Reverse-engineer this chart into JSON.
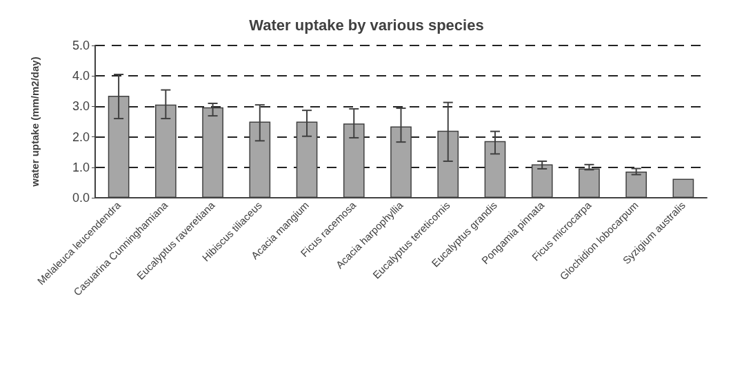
{
  "chart_data": {
    "type": "bar",
    "title": "Water uptake by various species",
    "ylabel": "water uptake (mm/m2/day)",
    "categories": [
      "Melaleuca leucendendra",
      "Casuarina Cunninghamiana",
      "Eucalyptus raveretiana",
      "Hibiscus tiliaceus",
      "Acacia mangium",
      "Ficus racemosa",
      "Acacia harpophyllia",
      "Eucalyptus tereticornis",
      "Eucalyptus grandis",
      "Pongamia pinnata",
      "Ficus microcarpa",
      "Glochidion lobocarpum",
      "Syzigium australis"
    ],
    "values": [
      3.35,
      3.06,
      2.97,
      2.5,
      2.5,
      2.44,
      2.34,
      2.2,
      1.86,
      1.1,
      0.96,
      0.86,
      0.62
    ],
    "errors": [
      [
        2.6,
        4.05
      ],
      [
        2.6,
        3.54
      ],
      [
        2.69,
        3.1
      ],
      [
        1.87,
        3.05
      ],
      [
        2.02,
        2.87
      ],
      [
        1.97,
        2.92
      ],
      [
        1.83,
        2.94
      ],
      [
        1.2,
        3.13
      ],
      [
        1.44,
        2.18
      ],
      [
        0.95,
        1.2
      ],
      [
        0.92,
        1.09
      ],
      [
        0.76,
        0.96
      ],
      null
    ],
    "color": "#a6a6a6",
    "ylim": [
      0,
      5
    ],
    "yticks": [
      {
        "value": 0,
        "label": "0.0"
      },
      {
        "value": 1,
        "label": "1.0"
      },
      {
        "value": 2,
        "label": "2.0"
      },
      {
        "value": 3,
        "label": "3.0"
      },
      {
        "value": 4,
        "label": "4.0"
      },
      {
        "value": 5,
        "label": "5.0"
      }
    ],
    "grid": "y",
    "line_style": "dashed"
  }
}
